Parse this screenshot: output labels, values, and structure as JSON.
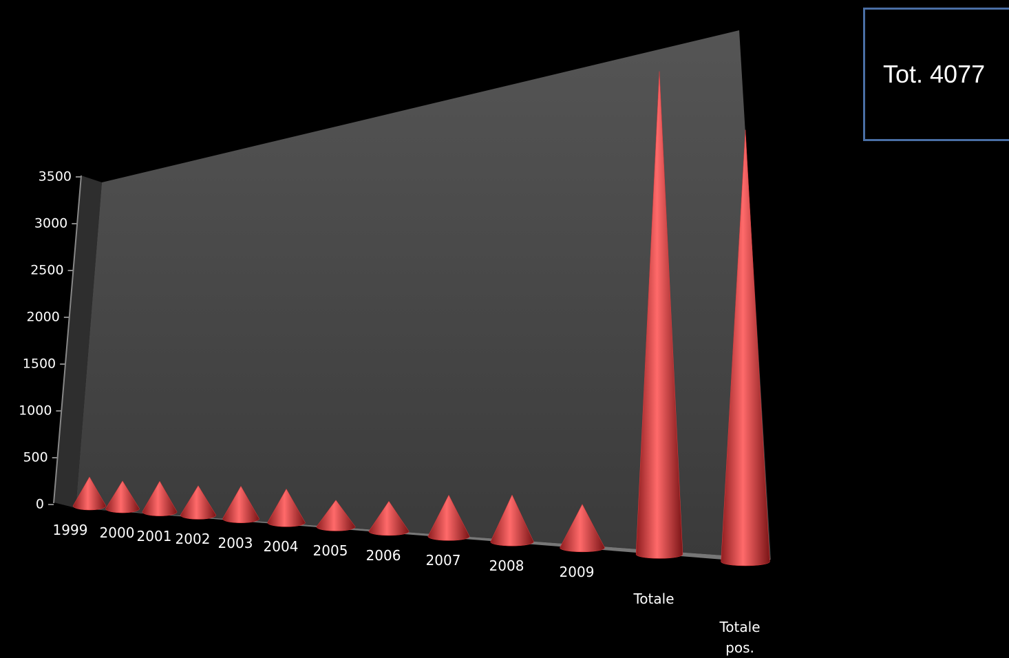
{
  "note": "Tot. 4077",
  "chart_data": {
    "type": "cone",
    "categories": [
      "1999",
      "2000",
      "2001",
      "2002",
      "2003",
      "2004",
      "2005",
      "2006",
      "2007",
      "2008",
      "2009",
      "Totale",
      "Totale pos."
    ],
    "values": [
      300,
      280,
      300,
      280,
      300,
      300,
      230,
      250,
      330,
      360,
      320,
      3400,
      2900
    ],
    "color": "#e03a3c",
    "ylim": [
      0,
      3500
    ],
    "yticks": [
      0,
      500,
      1000,
      1500,
      2000,
      2500,
      3000,
      3500
    ]
  }
}
